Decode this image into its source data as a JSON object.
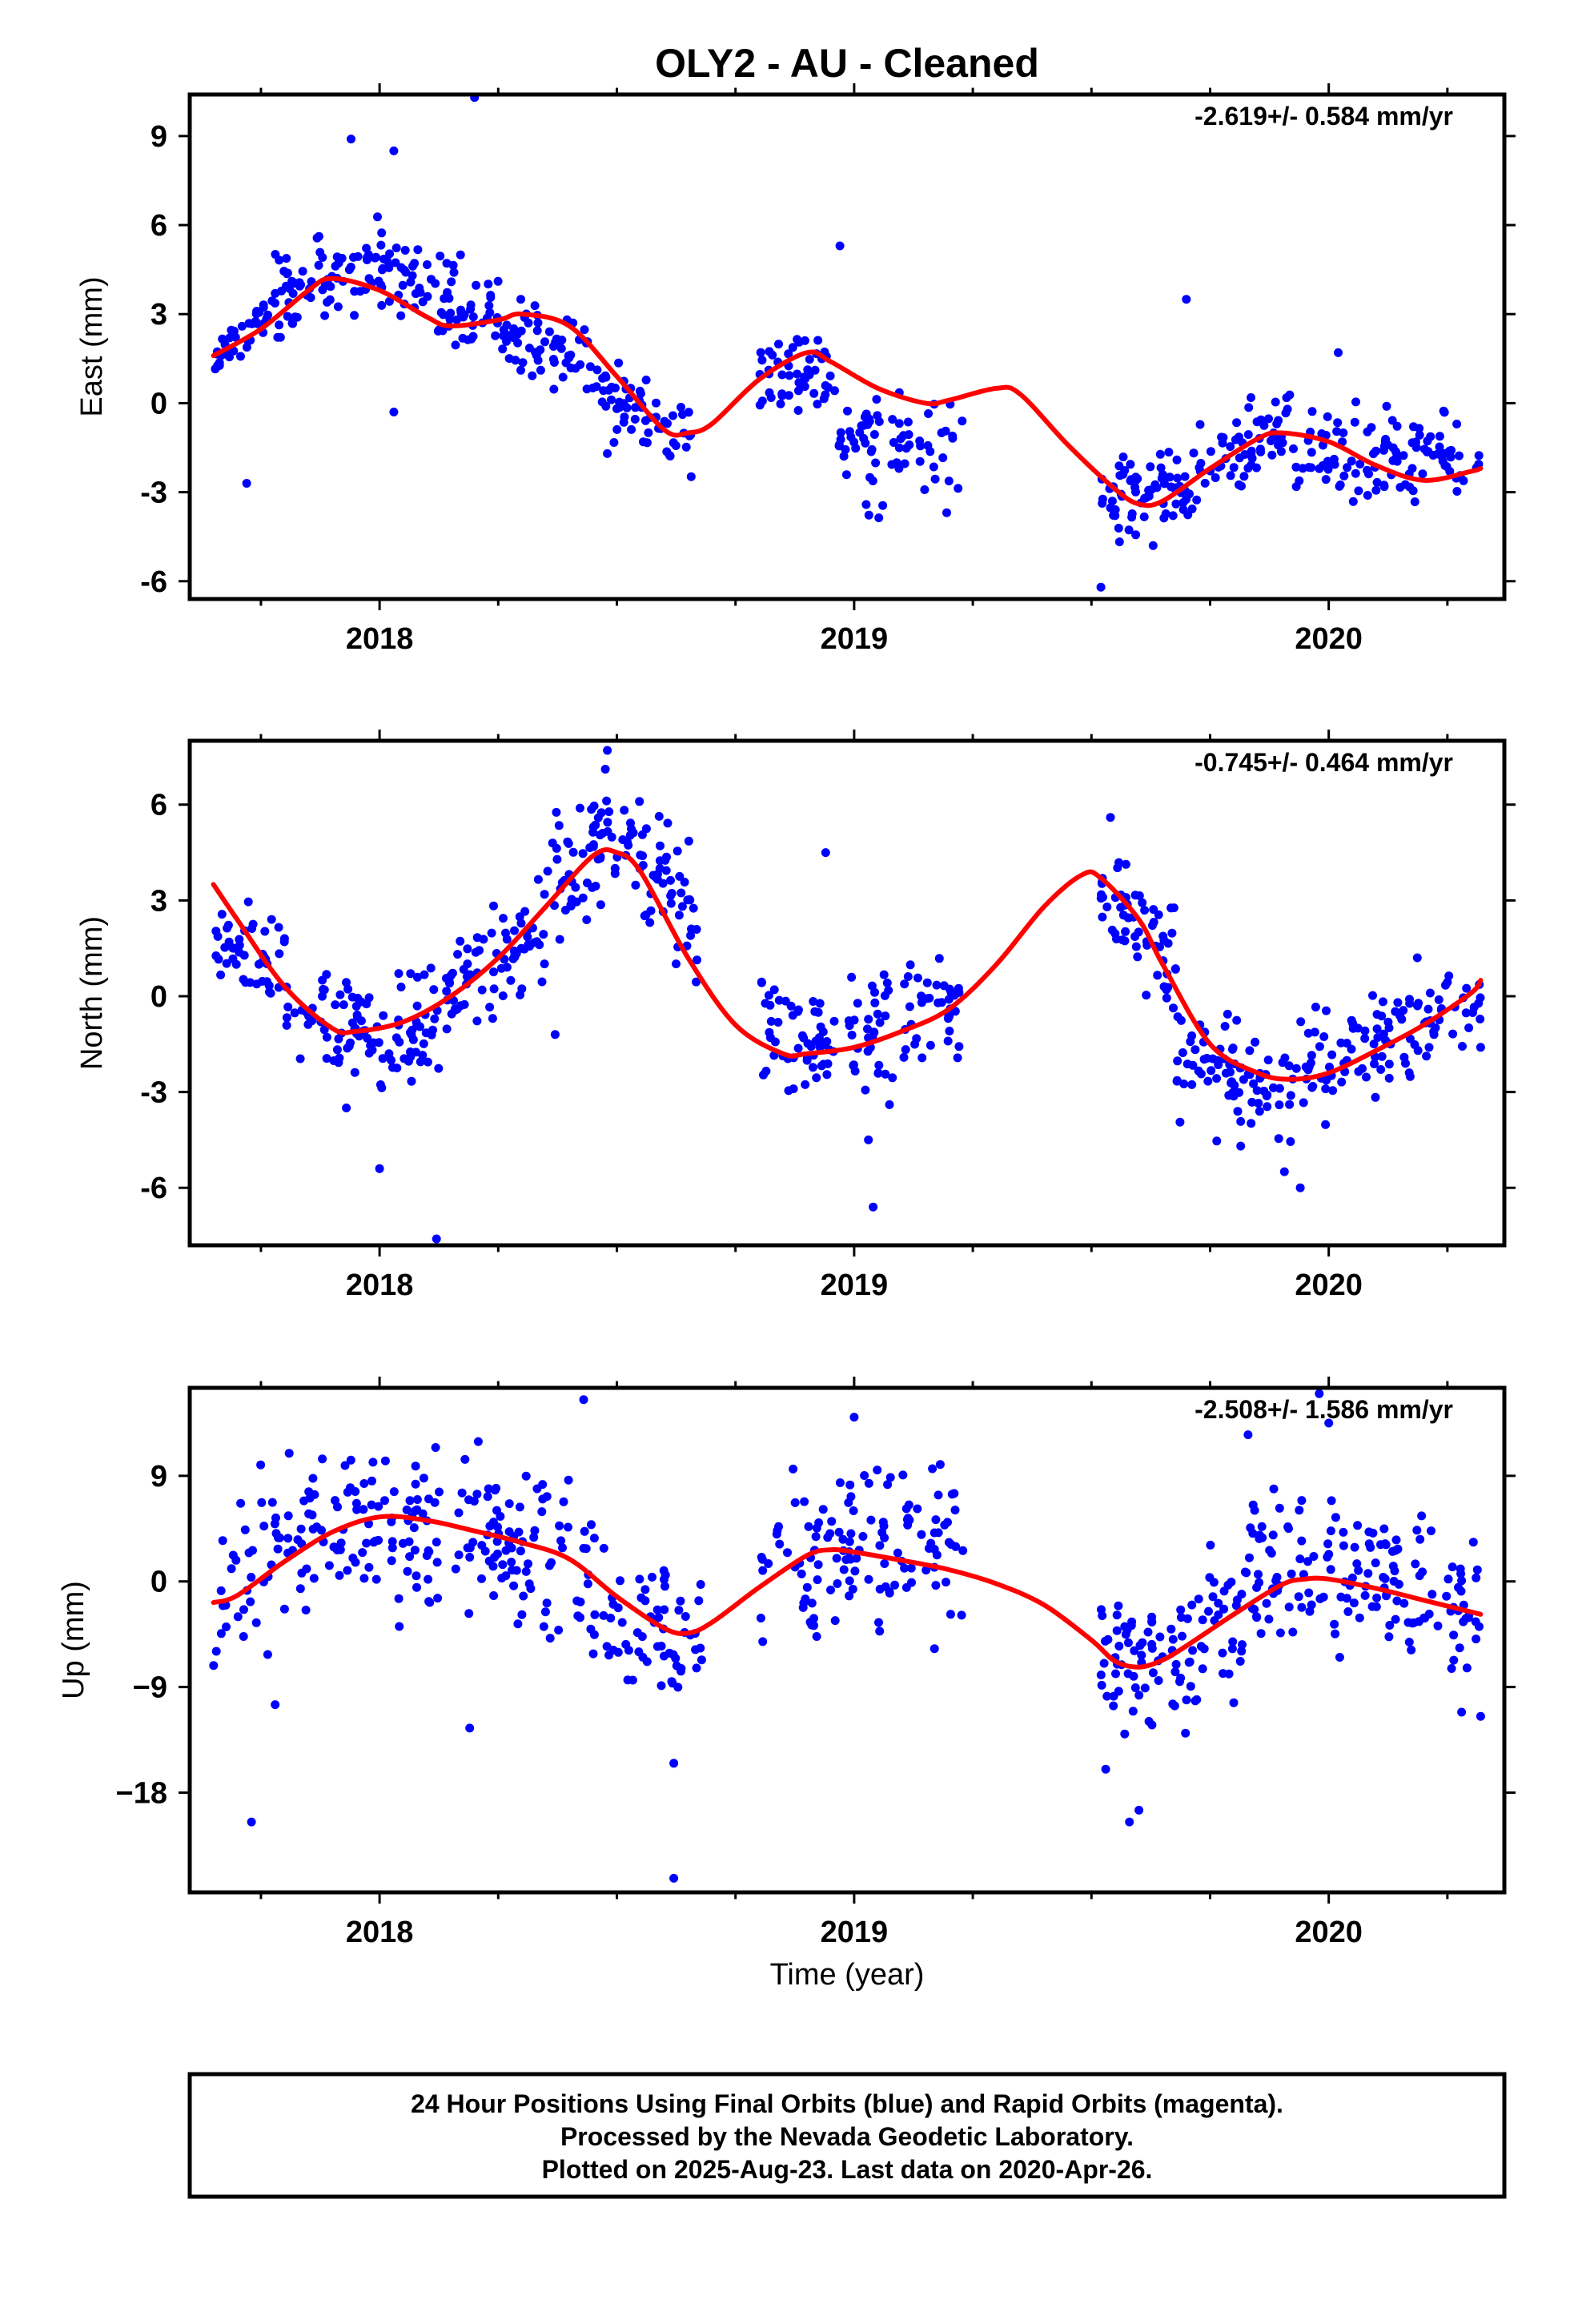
{
  "title": "OLY2  - AU - Cleaned",
  "xlabel": "Time (year)",
  "colors": {
    "final_orbits": "#0000ff",
    "rapid_orbits": "#ff00ff",
    "model": "#ff0000",
    "frame": "#000000"
  },
  "footer": {
    "line1": "24 Hour Positions Using Final Orbits (blue) and Rapid Orbits (magenta).",
    "line2": "Processed by the Nevada Geodetic Laboratory.",
    "line3": "Plotted on 2025-Aug-23. Last data on 2020-Apr-26."
  },
  "chart_data": [
    {
      "type": "scatter",
      "ylabel": "East (mm)",
      "rate_label": "-2.619+/- 0.584 mm/yr",
      "xlim": [
        2017.6,
        2020.37
      ],
      "ylim": [
        -6.6,
        10.4
      ],
      "x_ticks": [
        2018,
        2019,
        2020
      ],
      "x_tick_labels": [
        "2018",
        "2019",
        "2020"
      ],
      "y_ticks": [
        -6,
        -3,
        0,
        3,
        6,
        9
      ],
      "y_tick_labels": [
        "-6",
        "-3",
        "0",
        "3",
        "6",
        "9"
      ],
      "grid": false,
      "data_gap": [
        2019.24,
        2019.5
      ],
      "model": {
        "x": [
          2017.65,
          2017.75,
          2017.85,
          2017.9,
          2018.0,
          2018.1,
          2018.15,
          2018.25,
          2018.3,
          2018.4,
          2018.5,
          2018.6,
          2018.65,
          2018.7,
          2018.8,
          2018.9,
          2018.95,
          2019.05,
          2019.15,
          2019.2,
          2019.3,
          2019.35,
          2019.45,
          2019.55,
          2019.6,
          2019.65,
          2019.75,
          2019.85,
          2019.9,
          2020.0,
          2020.1,
          2020.2,
          2020.3,
          2020.32
        ],
        "y": [
          1.6,
          2.5,
          3.8,
          4.2,
          3.8,
          2.9,
          2.6,
          2.8,
          3.0,
          2.6,
          0.9,
          -0.9,
          -1.0,
          -0.7,
          0.8,
          1.7,
          1.4,
          0.5,
          0.0,
          0.1,
          0.5,
          0.3,
          -1.4,
          -2.9,
          -3.4,
          -3.3,
          -2.2,
          -1.2,
          -1.0,
          -1.3,
          -2.1,
          -2.6,
          -2.3,
          -2.2
        ]
      },
      "series": [
        {
          "name": "Final Orbits",
          "color": "#0000ff",
          "segments": [
            {
              "x0": 2017.65,
              "x1": 2017.78,
              "base": 1.2,
              "trend": 2.3,
              "spread": 1.6,
              "count": 40
            },
            {
              "x0": 2017.78,
              "x1": 2018.02,
              "base": 3.7,
              "trend": 1.0,
              "spread": 2.8,
              "count": 80
            },
            {
              "x0": 2018.02,
              "x1": 2018.25,
              "base": 4.1,
              "trend": -1.2,
              "spread": 2.6,
              "count": 70
            },
            {
              "x0": 2018.25,
              "x1": 2018.45,
              "base": 2.6,
              "trend": -1.2,
              "spread": 2.4,
              "count": 60
            },
            {
              "x0": 2018.45,
              "x1": 2018.66,
              "base": 0.8,
              "trend": -2.0,
              "spread": 2.4,
              "count": 60
            },
            {
              "x0": 2018.8,
              "x1": 2018.96,
              "base": 1.1,
              "trend": 0.0,
              "spread": 2.8,
              "count": 50
            },
            {
              "x0": 2018.96,
              "x1": 2019.23,
              "base": -1.5,
              "trend": 0.0,
              "spread": 3.6,
              "count": 70
            },
            {
              "x0": 2019.52,
              "x1": 2019.72,
              "base": -3.2,
              "trend": 0.4,
              "spread": 2.6,
              "count": 70
            },
            {
              "x0": 2019.72,
              "x1": 2019.92,
              "base": -2.0,
              "trend": 1.2,
              "spread": 2.8,
              "count": 60
            },
            {
              "x0": 2019.92,
              "x1": 2020.32,
              "base": -1.7,
              "trend": 0.0,
              "spread": 2.6,
              "count": 110
            }
          ],
          "outliers": [
            [
              2018.03,
              8.5
            ],
            [
              2018.2,
              10.3
            ],
            [
              2017.94,
              8.9
            ],
            [
              2018.03,
              -0.3
            ],
            [
              2017.72,
              -2.7
            ],
            [
              2018.97,
              5.3
            ],
            [
              2019.7,
              3.5
            ],
            [
              2019.52,
              -6.2
            ],
            [
              2019.63,
              -4.8
            ],
            [
              2020.02,
              1.7
            ],
            [
              2018.48,
              -1.7
            ]
          ]
        }
      ]
    },
    {
      "type": "scatter",
      "ylabel": "North (mm)",
      "rate_label": "-0.745+/- 0.464 mm/yr",
      "xlim": [
        2017.6,
        2020.37
      ],
      "ylim": [
        -7.8,
        8.0
      ],
      "x_ticks": [
        2018,
        2019,
        2020
      ],
      "x_tick_labels": [
        "2018",
        "2019",
        "2020"
      ],
      "y_ticks": [
        -6,
        -3,
        0,
        3,
        6
      ],
      "y_tick_labels": [
        "-6",
        "-3",
        "0",
        "3",
        "6"
      ],
      "grid": false,
      "data_gap": [
        2019.24,
        2019.5
      ],
      "model": {
        "x": [
          2017.65,
          2017.7,
          2017.8,
          2017.9,
          2017.95,
          2018.05,
          2018.15,
          2018.25,
          2018.35,
          2018.45,
          2018.5,
          2018.55,
          2018.65,
          2018.75,
          2018.85,
          2018.9,
          2019.0,
          2019.1,
          2019.2,
          2019.3,
          2019.4,
          2019.48,
          2019.52,
          2019.6,
          2019.65,
          2019.75,
          2019.85,
          2019.92,
          2020.0,
          2020.1,
          2020.2,
          2020.3,
          2020.32
        ],
        "y": [
          3.5,
          2.4,
          0.3,
          -1.0,
          -1.1,
          -0.8,
          0.0,
          1.2,
          2.8,
          4.4,
          4.5,
          3.9,
          1.2,
          -0.9,
          -1.8,
          -1.8,
          -1.6,
          -1.1,
          -0.4,
          1.0,
          2.8,
          3.8,
          3.7,
          2.4,
          1.0,
          -1.5,
          -2.4,
          -2.6,
          -2.4,
          -1.7,
          -0.9,
          0.1,
          0.5
        ]
      },
      "series": [
        {
          "name": "Final Orbits",
          "color": "#0000ff",
          "segments": [
            {
              "x0": 2017.65,
              "x1": 2017.8,
              "base": 1.6,
              "trend": -0.8,
              "spread": 2.6,
              "count": 45
            },
            {
              "x0": 2017.8,
              "x1": 2018.0,
              "base": -0.4,
              "trend": -0.8,
              "spread": 3.0,
              "count": 60
            },
            {
              "x0": 2018.0,
              "x1": 2018.15,
              "base": -1.6,
              "trend": 1.2,
              "spread": 3.0,
              "count": 50
            },
            {
              "x0": 2018.15,
              "x1": 2018.35,
              "base": 0.3,
              "trend": 1.8,
              "spread": 3.0,
              "count": 65
            },
            {
              "x0": 2018.35,
              "x1": 2018.5,
              "base": 3.0,
              "trend": 2.5,
              "spread": 3.2,
              "count": 55
            },
            {
              "x0": 2018.5,
              "x1": 2018.67,
              "base": 5.0,
              "trend": -2.5,
              "spread": 3.0,
              "count": 60
            },
            {
              "x0": 2018.8,
              "x1": 2018.97,
              "base": -1.0,
              "trend": -0.6,
              "spread": 3.4,
              "count": 55
            },
            {
              "x0": 2018.97,
              "x1": 2019.23,
              "base": -1.3,
              "trend": 1.2,
              "spread": 3.4,
              "count": 75
            },
            {
              "x0": 2019.52,
              "x1": 2019.68,
              "base": 3.2,
              "trend": -2.2,
              "spread": 2.8,
              "count": 60
            },
            {
              "x0": 2019.68,
              "x1": 2019.92,
              "base": -1.8,
              "trend": -1.4,
              "spread": 3.2,
              "count": 80
            },
            {
              "x0": 2019.92,
              "x1": 2020.32,
              "base": -2.4,
              "trend": 2.4,
              "spread": 3.0,
              "count": 110
            }
          ],
          "outliers": [
            [
              2018.0,
              -5.4
            ],
            [
              2018.12,
              -7.6
            ],
            [
              2018.37,
              -1.2
            ],
            [
              2018.48,
              7.7
            ],
            [
              2018.94,
              4.5
            ],
            [
              2019.04,
              -6.6
            ],
            [
              2019.03,
              -4.5
            ],
            [
              2019.54,
              5.6
            ],
            [
              2019.94,
              -6.0
            ],
            [
              2020.32,
              -1.6
            ],
            [
              2017.93,
              -3.5
            ]
          ]
        }
      ]
    },
    {
      "type": "scatter",
      "ylabel": "Up (mm)",
      "rate_label": "-2.508+/- 1.586 mm/yr",
      "xlim": [
        2017.6,
        2020.37
      ],
      "ylim": [
        -26.5,
        16.5
      ],
      "x_ticks": [
        2018,
        2019,
        2020
      ],
      "x_tick_labels": [
        "2018",
        "2019",
        "2020"
      ],
      "y_ticks": [
        -18,
        -9,
        0,
        9
      ],
      "y_tick_labels": [
        "−18",
        "−9",
        "0",
        "9"
      ],
      "grid": false,
      "data_gap": [
        2019.24,
        2019.5
      ],
      "model": {
        "x": [
          2017.65,
          2017.7,
          2017.8,
          2017.9,
          2018.0,
          2018.1,
          2018.2,
          2018.3,
          2018.4,
          2018.5,
          2018.6,
          2018.65,
          2018.7,
          2018.8,
          2018.9,
          2018.95,
          2019.0,
          2019.1,
          2019.2,
          2019.3,
          2019.4,
          2019.5,
          2019.55,
          2019.6,
          2019.65,
          2019.7,
          2019.8,
          2019.9,
          2019.95,
          2020.0,
          2020.1,
          2020.2,
          2020.32
        ],
        "y": [
          -1.8,
          -1.2,
          1.7,
          4.2,
          5.5,
          5.2,
          4.3,
          3.3,
          1.9,
          -1.3,
          -4.0,
          -4.4,
          -3.5,
          -0.5,
          2.2,
          2.7,
          2.5,
          1.8,
          1.0,
          -0.2,
          -2.0,
          -5.0,
          -6.8,
          -7.3,
          -6.7,
          -5.5,
          -2.8,
          -0.3,
          0.2,
          0.2,
          -0.6,
          -1.6,
          -2.8
        ]
      },
      "series": [
        {
          "name": "Final Orbits",
          "color": "#0000ff",
          "segments": [
            {
              "x0": 2017.65,
              "x1": 2017.85,
              "base": -1.0,
              "trend": 5.0,
              "spread": 12.0,
              "count": 50
            },
            {
              "x0": 2017.85,
              "x1": 2018.15,
              "base": 4.5,
              "trend": 0.0,
              "spread": 13.0,
              "count": 90
            },
            {
              "x0": 2018.15,
              "x1": 2018.45,
              "base": 4.0,
              "trend": -3.0,
              "spread": 14.0,
              "count": 90
            },
            {
              "x0": 2018.45,
              "x1": 2018.68,
              "base": -2.5,
              "trend": -3.0,
              "spread": 12.0,
              "count": 65
            },
            {
              "x0": 2018.8,
              "x1": 2019.0,
              "base": 0.5,
              "trend": 3.0,
              "spread": 12.0,
              "count": 60
            },
            {
              "x0": 2019.0,
              "x1": 2019.23,
              "base": 3.5,
              "trend": 0.0,
              "spread": 14.0,
              "count": 65
            },
            {
              "x0": 2019.52,
              "x1": 2019.72,
              "base": -6.5,
              "trend": 0.0,
              "spread": 11.0,
              "count": 70
            },
            {
              "x0": 2019.72,
              "x1": 2019.95,
              "base": -3.5,
              "trend": 6.0,
              "spread": 13.0,
              "count": 75
            },
            {
              "x0": 2019.95,
              "x1": 2020.32,
              "base": 1.0,
              "trend": -4.0,
              "spread": 12.0,
              "count": 110
            }
          ],
          "outliers": [
            [
              2017.73,
              -20.5
            ],
            [
              2018.62,
              -25.3
            ],
            [
              2018.62,
              -15.5
            ],
            [
              2018.43,
              15.5
            ],
            [
              2019.58,
              -20.5
            ],
            [
              2019.6,
              -19.5
            ],
            [
              2019.53,
              -16.0
            ],
            [
              2019.57,
              -13.0
            ],
            [
              2019.98,
              16.0
            ],
            [
              2020.0,
              13.5
            ],
            [
              2019.83,
              12.5
            ],
            [
              2017.78,
              -10.5
            ],
            [
              2018.19,
              -12.5
            ],
            [
              2020.32,
              -11.5
            ],
            [
              2019.0,
              14.0
            ]
          ]
        }
      ]
    }
  ]
}
